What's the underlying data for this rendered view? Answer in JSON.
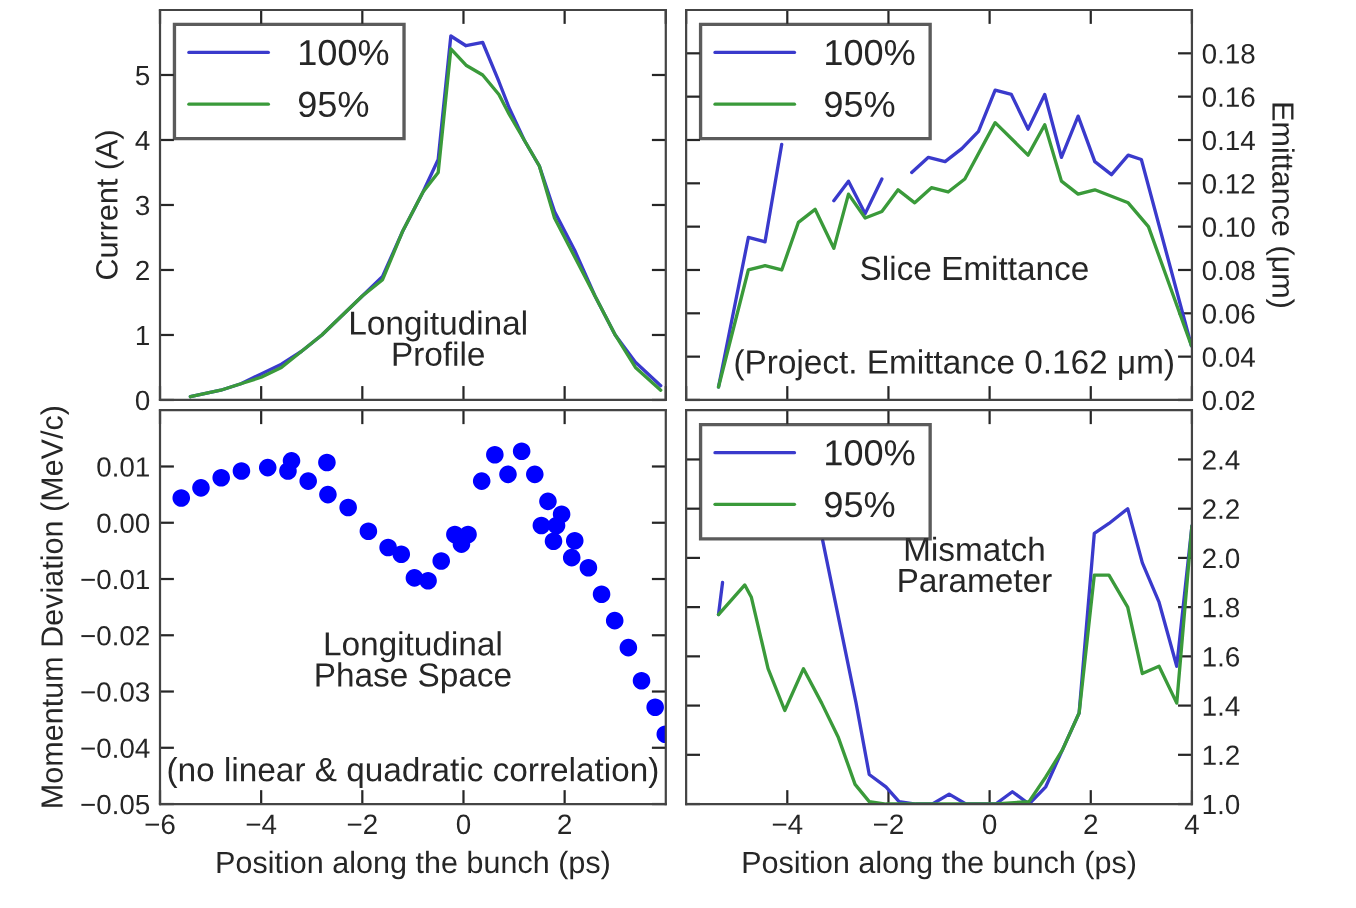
{
  "chart_data": [
    {
      "type": "line",
      "ylabel": "Current (A)",
      "annotations": [
        "Longitudinal\nProfile"
      ],
      "xlim": [
        -6,
        4
      ],
      "ylim": [
        0,
        6
      ],
      "yticks": [
        0,
        1,
        2,
        3,
        4,
        5
      ],
      "tick_labels": "y",
      "legend": "top left",
      "grid": false,
      "series": [
        {
          "name": "100%",
          "color": "#3a3acc",
          "x": [
            -5.4,
            -4.8,
            -4.4,
            -4.0,
            -3.6,
            -3.2,
            -2.8,
            -2.4,
            -2.0,
            -1.6,
            -1.2,
            -0.8,
            -0.5,
            -0.25,
            0.05,
            0.38,
            0.7,
            0.9,
            1.2,
            1.5,
            1.8,
            2.2,
            2.6,
            3.0,
            3.4,
            3.9
          ],
          "values": [
            0.05,
            0.15,
            0.25,
            0.4,
            0.55,
            0.75,
            1.0,
            1.3,
            1.6,
            1.9,
            2.6,
            3.2,
            3.7,
            5.6,
            5.45,
            5.5,
            4.9,
            4.5,
            4.0,
            3.6,
            2.9,
            2.3,
            1.6,
            1.0,
            0.58,
            0.22
          ]
        },
        {
          "name": "95%",
          "color": "#3a9a3a",
          "x": [
            -5.4,
            -4.8,
            -4.4,
            -4.0,
            -3.6,
            -3.2,
            -2.8,
            -2.4,
            -2.0,
            -1.6,
            -1.2,
            -0.8,
            -0.5,
            -0.25,
            0.05,
            0.38,
            0.7,
            0.9,
            1.2,
            1.5,
            1.8,
            2.2,
            2.6,
            3.0,
            3.4,
            3.9
          ],
          "values": [
            0.05,
            0.15,
            0.25,
            0.35,
            0.5,
            0.75,
            1.0,
            1.3,
            1.6,
            1.85,
            2.6,
            3.2,
            3.5,
            5.4,
            5.15,
            5.0,
            4.7,
            4.4,
            4.0,
            3.6,
            2.8,
            2.2,
            1.6,
            1.0,
            0.5,
            0.15
          ]
        }
      ]
    },
    {
      "type": "line",
      "y2label": "Emittance (μm)",
      "annotations": [
        "Slice Emittance",
        "(Project. Emittance 0.162 μm)"
      ],
      "xlim": [
        -6,
        4
      ],
      "y2lim": [
        0.02,
        0.2
      ],
      "y2ticks": [
        0.02,
        0.04,
        0.06,
        0.08,
        {
          "value": 0.1,
          "label": "0.10"
        },
        0.12,
        0.14,
        0.16,
        0.18
      ],
      "tick_labels": "y",
      "legend": "top left",
      "grid": false,
      "series": [
        {
          "name": "100%",
          "color": "#3a3acc",
          "axis": "y2",
          "x": [
            -5.36,
            -4.77,
            -4.44,
            -4.11,
            -3.6,
            -3.08,
            -2.79,
            -2.46,
            -2.13,
            -1.8,
            -1.54,
            -1.21,
            -0.88,
            -0.55,
            -0.22,
            0.11,
            0.43,
            0.76,
            1.09,
            1.42,
            1.75,
            2.08,
            2.41,
            2.74,
            3.0,
            3.99
          ],
          "values": [
            0.026,
            0.095,
            0.093,
            0.138,
            null,
            0.112,
            0.121,
            0.106,
            0.122,
            null,
            0.125,
            0.132,
            0.13,
            0.136,
            0.144,
            0.163,
            0.161,
            0.145,
            0.161,
            0.132,
            0.151,
            0.13,
            0.124,
            0.133,
            0.131,
            0.045
          ]
        },
        {
          "name": "95%",
          "color": "#3a9a3a",
          "axis": "y2",
          "x": [
            -5.36,
            -4.77,
            -4.44,
            -4.11,
            -3.78,
            -3.45,
            -3.08,
            -2.79,
            -2.46,
            -2.13,
            -1.81,
            -1.48,
            -1.15,
            -0.82,
            -0.49,
            0.11,
            0.76,
            1.09,
            1.42,
            1.75,
            2.08,
            2.74,
            3.14,
            3.99
          ],
          "values": [
            0.026,
            0.08,
            0.082,
            0.08,
            0.102,
            0.108,
            0.09,
            0.115,
            0.104,
            0.107,
            0.117,
            0.111,
            0.118,
            0.116,
            0.122,
            0.148,
            0.133,
            0.147,
            0.121,
            0.115,
            0.117,
            0.111,
            0.1,
            0.045
          ]
        }
      ]
    },
    {
      "type": "scatter",
      "xlabel": "Position along the bunch (ps)",
      "ylabel": "Momentum Deviation (MeV/c)",
      "annotations": [
        "Longitudinal\nPhase Space",
        "(no linear & quadratic correlation)"
      ],
      "xlim": [
        -6,
        4
      ],
      "xticks": [
        {
          "value": -6,
          "label": "−6"
        },
        {
          "value": -4,
          "label": "−4"
        },
        {
          "value": -2,
          "label": "−2"
        },
        0,
        2
      ],
      "ylim": [
        -0.05,
        0.02
      ],
      "yticks": [
        {
          "value": -0.05,
          "label": "−0.05"
        },
        {
          "value": -0.04,
          "label": "−0.04"
        },
        {
          "value": -0.03,
          "label": "−0.03"
        },
        {
          "value": -0.02,
          "label": "−0.02"
        },
        {
          "value": -0.01,
          "label": "−0.01"
        },
        {
          "value": 0,
          "label": "0.00"
        },
        {
          "value": 0.01,
          "label": "0.01"
        }
      ],
      "marker": "circle",
      "grid": false,
      "series": [
        {
          "color": "#0000ff",
          "x": [
            -5.58,
            -5.19,
            -4.79,
            -4.39,
            -3.87,
            -3.47,
            -3.07,
            -2.68,
            -2.28,
            -1.88,
            -1.49,
            -1.23,
            -0.97,
            -0.7,
            -0.44,
            -0.17,
            -0.04,
            0.09,
            0.36,
            0.62,
            0.88,
            1.15,
            1.41,
            1.67,
            1.94,
            2.2,
            2.47,
            2.73,
            2.99,
            3.26,
            3.52,
            3.79,
            3.99,
            -3.4,
            -2.7,
            1.54,
            1.84,
            1.78,
            2.14
          ],
          "values": [
            0.0044,
            0.0062,
            0.008,
            0.0092,
            0.0098,
            0.0092,
            0.0074,
            0.005,
            0.0027,
            -0.0015,
            -0.0044,
            -0.0056,
            -0.0098,
            -0.0103,
            -0.0068,
            -0.0021,
            -0.0038,
            -0.0021,
            0.0074,
            0.0121,
            0.0086,
            0.0127,
            0.0086,
            0.0038,
            0.0015,
            -0.0032,
            -0.008,
            -0.0127,
            -0.0174,
            -0.0222,
            -0.0281,
            -0.0328,
            -0.0376,
            0.011,
            0.0107,
            -0.0005,
            -0.0005,
            -0.0033,
            -0.0062
          ]
        }
      ]
    },
    {
      "type": "line",
      "xlabel": "Position along the bunch (ps)",
      "annotations": [
        "Mismatch\nParameter"
      ],
      "xlim": [
        -6,
        4
      ],
      "xticks": [
        {
          "value": -4,
          "label": "−4"
        },
        {
          "value": -2,
          "label": "−2"
        },
        0,
        2,
        4
      ],
      "y2lim": [
        1.0,
        2.6
      ],
      "y2ticks": [
        {
          "value": 1.0,
          "label": "1.0"
        },
        1.2,
        1.4,
        1.6,
        1.8,
        {
          "value": 2.0,
          "label": "2.0"
        },
        2.2,
        2.4
      ],
      "legend": "top left",
      "grid": false,
      "series": [
        {
          "name": "100%",
          "color": "#3a3acc",
          "axis": "y2",
          "x": [
            -5.36,
            -5.28,
            -4.3,
            -3.3,
            -2.97,
            -2.64,
            -2.38,
            -2.05,
            -1.79,
            -1.46,
            -1.13,
            -0.8,
            -0.47,
            -0.14,
            0.12,
            0.45,
            0.78,
            1.11,
            1.44,
            1.77,
            2.07,
            2.36,
            2.73,
            3.02,
            3.35,
            3.7,
            4.0
          ],
          "values": [
            1.77,
            1.9,
            null,
            2.07,
            1.74,
            1.41,
            1.12,
            1.07,
            1.01,
            1.0,
            1.0,
            1.04,
            1.0,
            1.0,
            1.0,
            1.05,
            1.0,
            1.07,
            1.22,
            1.37,
            2.1,
            2.14,
            2.2,
            1.98,
            1.82,
            1.56,
            2.13
          ]
        },
        {
          "name": "95%",
          "color": "#3a9a3a",
          "axis": "y2",
          "x": [
            -5.36,
            -4.84,
            -4.71,
            -4.38,
            -4.05,
            -3.68,
            -3.32,
            -2.99,
            -2.66,
            -2.38,
            -2.05,
            -1.66,
            -0.34,
            0.12,
            0.78,
            1.11,
            1.44,
            1.77,
            2.07,
            2.36,
            2.73,
            3.02,
            3.35,
            3.7,
            4.0
          ],
          "values": [
            1.77,
            1.89,
            1.84,
            1.55,
            1.38,
            1.55,
            1.41,
            1.27,
            1.08,
            1.01,
            1.0,
            1.0,
            1.0,
            1.0,
            1.01,
            1.11,
            1.22,
            1.37,
            1.93,
            1.93,
            1.8,
            1.53,
            1.56,
            1.41,
            2.13
          ]
        }
      ]
    }
  ]
}
